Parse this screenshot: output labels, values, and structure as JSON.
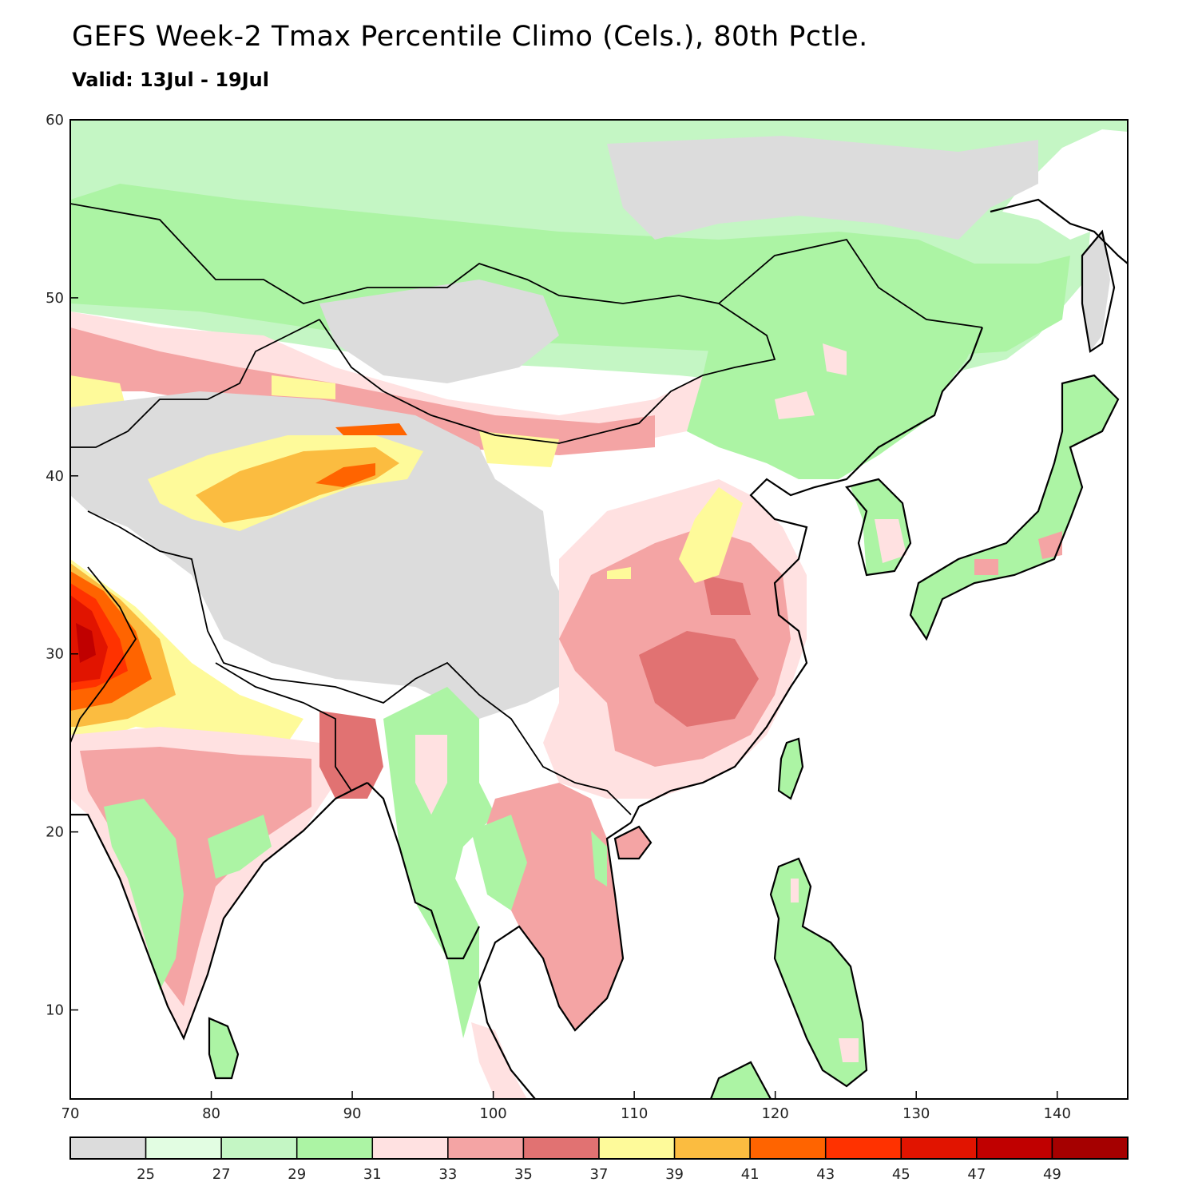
{
  "title": "GEFS Week-2 Tmax Percentile Climo (Cels.), 80th Pctle.",
  "subtitle": "Valid: 13Jul - 19Jul",
  "map": {
    "lon_range": [
      70,
      145
    ],
    "lat_range": [
      5,
      60
    ],
    "x_ticks": [
      "70",
      "80",
      "90",
      "100",
      "110",
      "120",
      "130",
      "140"
    ],
    "y_ticks": [
      "10",
      "20",
      "30",
      "40",
      "50",
      "60"
    ]
  },
  "colorbar": {
    "colors": [
      "#dcdcdc",
      "#e2fde2",
      "#c4f6c4",
      "#acf4a4",
      "#ffe1e1",
      "#f4a4a4",
      "#e17272",
      "#fefa9a",
      "#fbbc40",
      "#ff6400",
      "#ff3200",
      "#e11400",
      "#c00000",
      "#a50000"
    ],
    "labels": [
      "25",
      "27",
      "29",
      "31",
      "33",
      "35",
      "37",
      "39",
      "41",
      "43",
      "45",
      "47",
      "49"
    ]
  }
}
